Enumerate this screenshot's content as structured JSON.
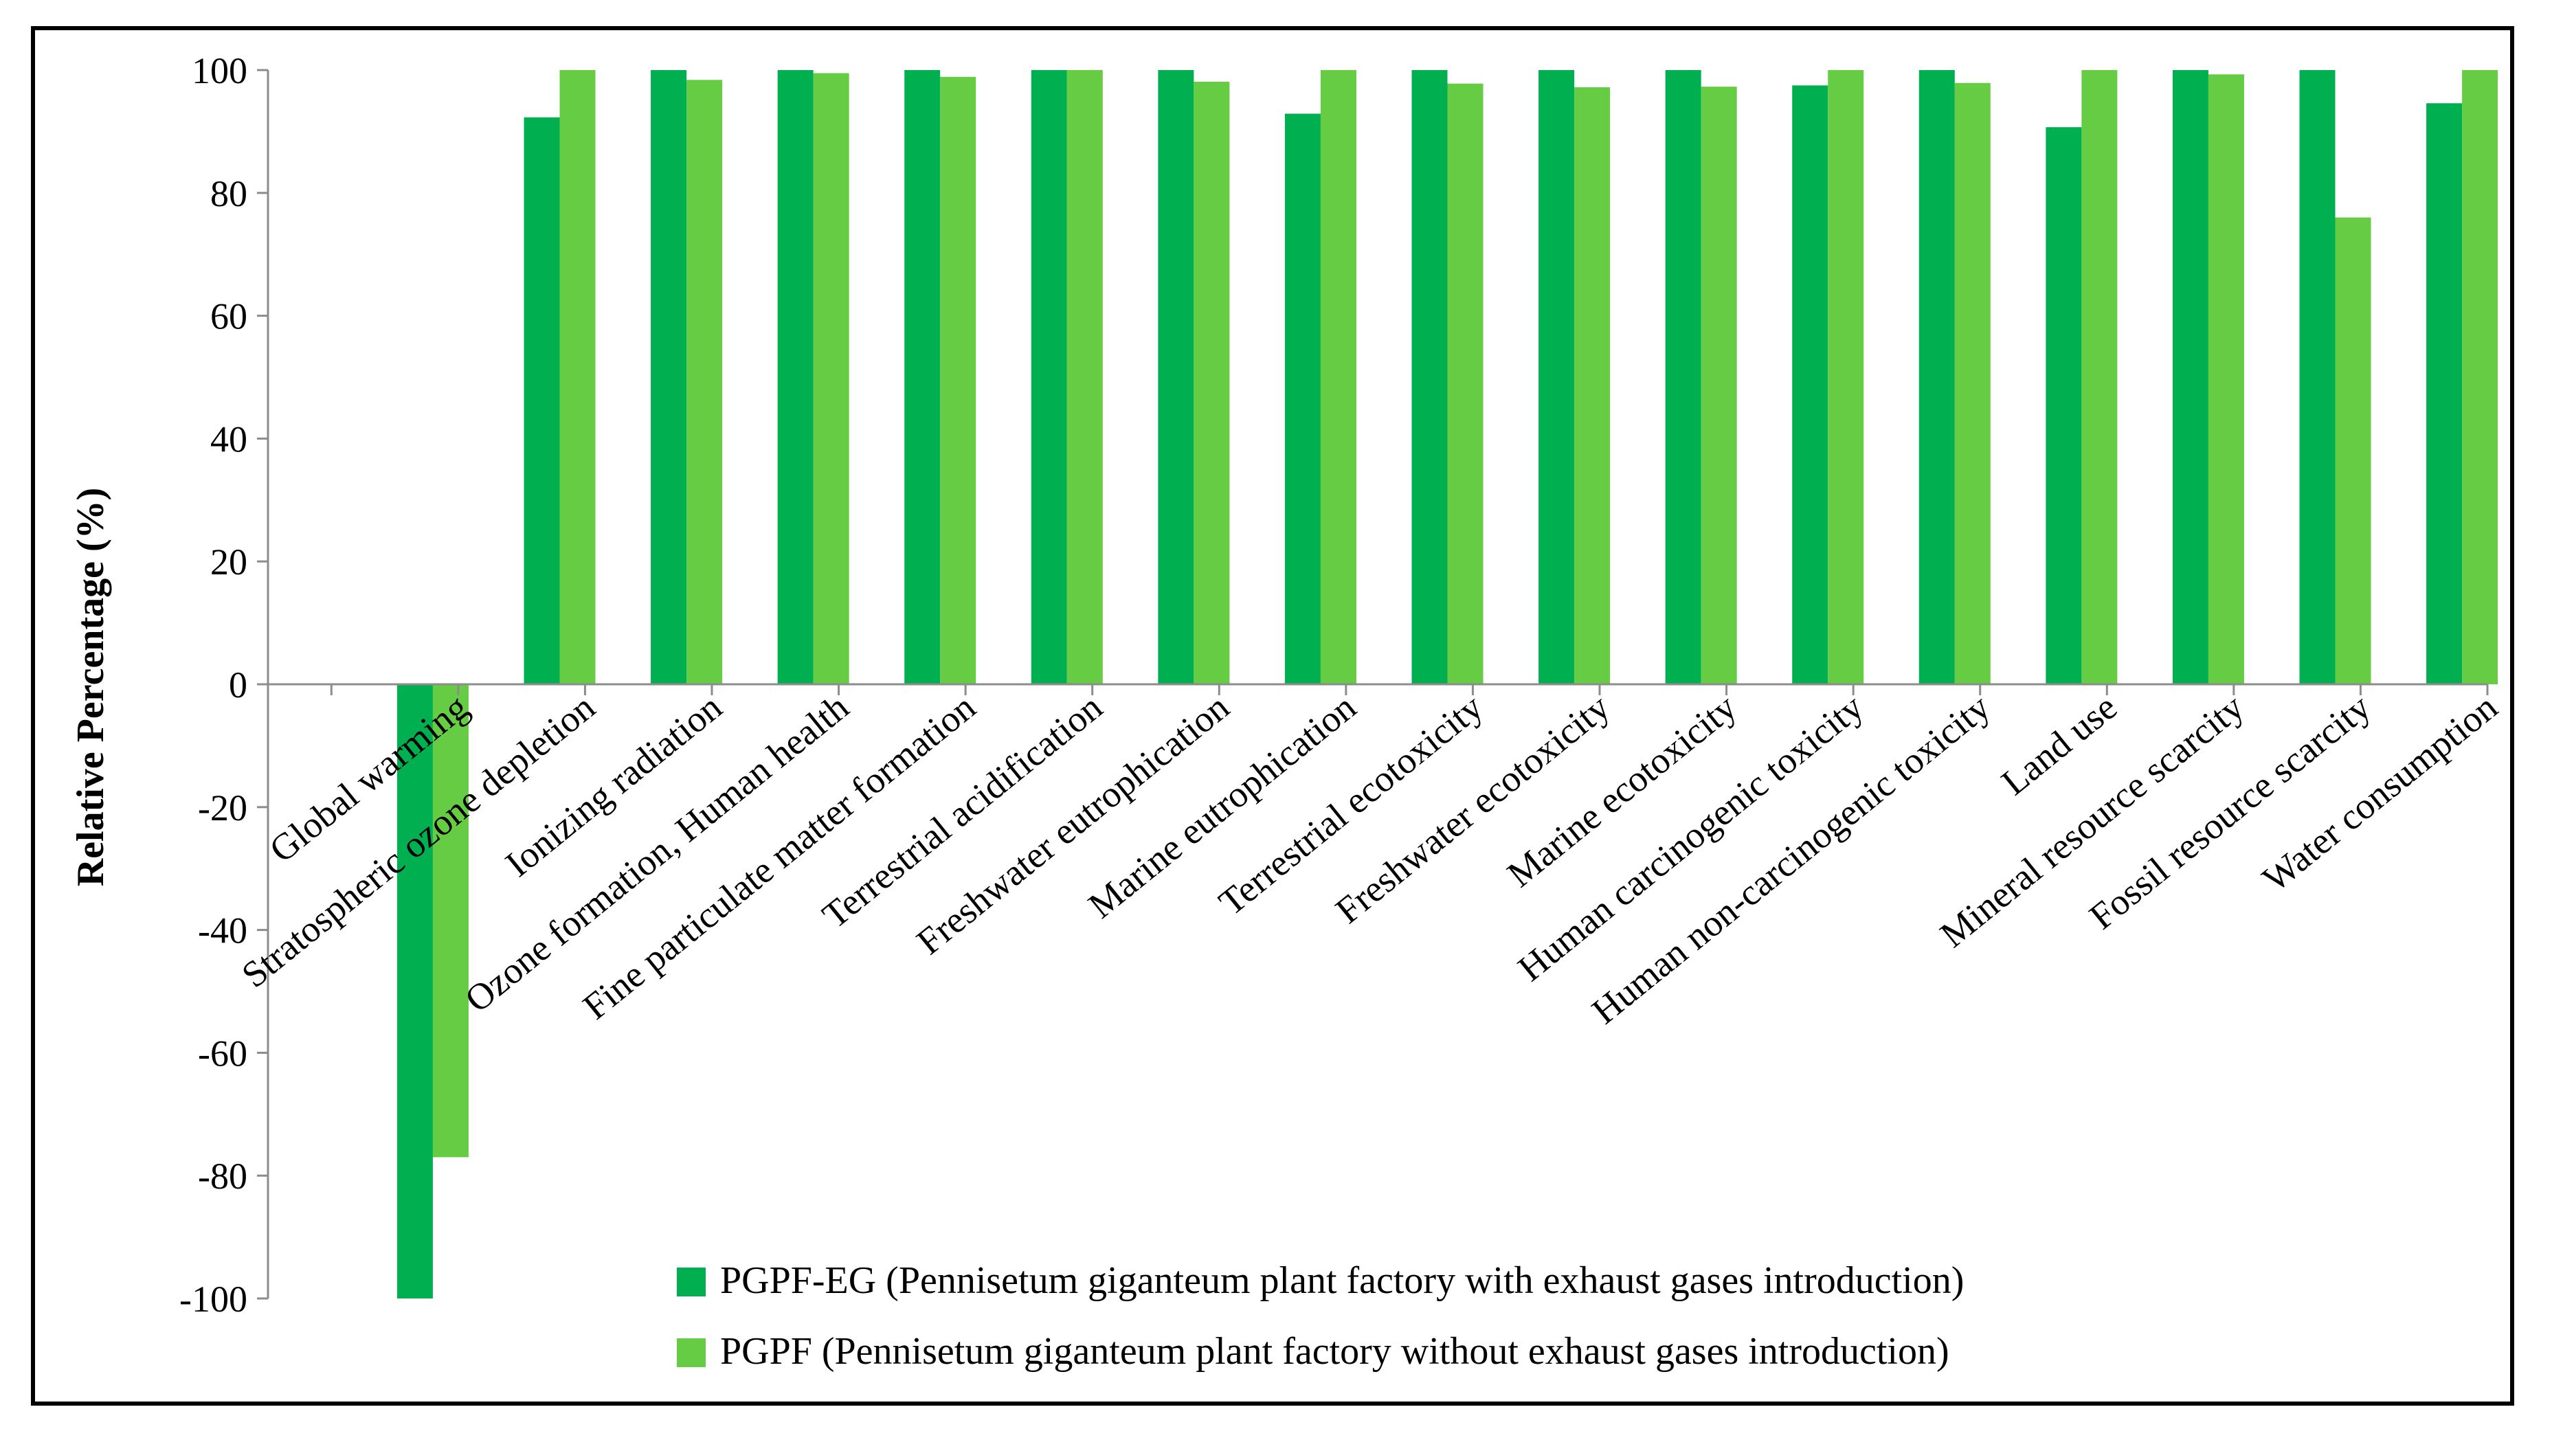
{
  "chart_data": {
    "type": "bar",
    "title": "",
    "xlabel": "",
    "ylabel": "Relative Percentage (%)",
    "ylim": [
      -100,
      100
    ],
    "yticks": [
      100,
      80,
      60,
      40,
      20,
      0,
      -20,
      -40,
      -60,
      -80,
      -100
    ],
    "grid": false,
    "legend_position": "bottom-right",
    "categories": [
      "Global warming",
      "Stratospheric ozone depletion",
      "Ionizing radiation",
      "Ozone formation, Human health",
      "Fine particulate matter formation",
      "Terrestrial acidification",
      "Freshwater eutrophication",
      "Marine eutrophication",
      "Terrestrial ecotoxicity",
      "Freshwater ecotoxicity",
      "Marine ecotoxicity",
      "Human carcinogenic toxicity",
      "Human non-carcinogenic toxicity",
      "Land use",
      "Mineral resource scarcity",
      "Fossil resource scarcity",
      "Water consumption"
    ],
    "series": [
      {
        "name": "PGPF-EG (Pennisetum giganteum plant factory with exhaust gases introduction)",
        "color": "#00b050",
        "values": [
          -100,
          92.3,
          100,
          100,
          100,
          100,
          100,
          92.9,
          100,
          100,
          100,
          97.5,
          100,
          90.7,
          100,
          100,
          94.6
        ]
      },
      {
        "name": "PGPF (Pennisetum giganteum plant factory without exhaust gases introduction)",
        "color": "#66cc44",
        "values": [
          -77,
          100,
          98.4,
          99.5,
          98.9,
          100,
          98.1,
          100,
          97.8,
          97.2,
          97.3,
          100,
          97.9,
          100,
          99.3,
          76,
          100
        ]
      }
    ]
  }
}
